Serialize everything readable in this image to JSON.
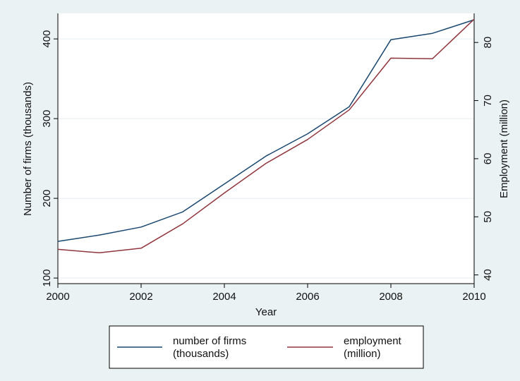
{
  "chart_data": {
    "type": "line",
    "title": "",
    "xlabel": "Year",
    "ylabel_left": "Number of firms (thousands)",
    "ylabel_right": "Employment (million)",
    "x": [
      2000,
      2001,
      2002,
      2003,
      2004,
      2005,
      2006,
      2007,
      2008,
      2009,
      2010
    ],
    "xlim": [
      2000,
      2010
    ],
    "x_ticks": [
      2000,
      2002,
      2004,
      2006,
      2008,
      2010
    ],
    "ylim_left": [
      93,
      432
    ],
    "y_ticks_left": [
      100,
      200,
      300,
      400
    ],
    "ylim_right": [
      38.5,
      85
    ],
    "y_ticks_right": [
      40,
      50,
      60,
      70,
      80
    ],
    "grid": true,
    "legend_position": "bottom",
    "series": [
      {
        "name_lines": [
          "number of firms",
          "(thousands)"
        ],
        "axis": "left",
        "color": "#1a476f",
        "values": [
          146,
          154,
          164,
          183,
          218,
          253,
          281,
          315,
          399,
          407,
          424
        ]
      },
      {
        "name_lines": [
          "employment",
          "(million)"
        ],
        "axis": "right",
        "color": "#90353b",
        "values": [
          44.4,
          43.8,
          44.6,
          48.8,
          54.1,
          59.2,
          63.3,
          68.4,
          77.3,
          77.2,
          84
        ]
      }
    ]
  }
}
